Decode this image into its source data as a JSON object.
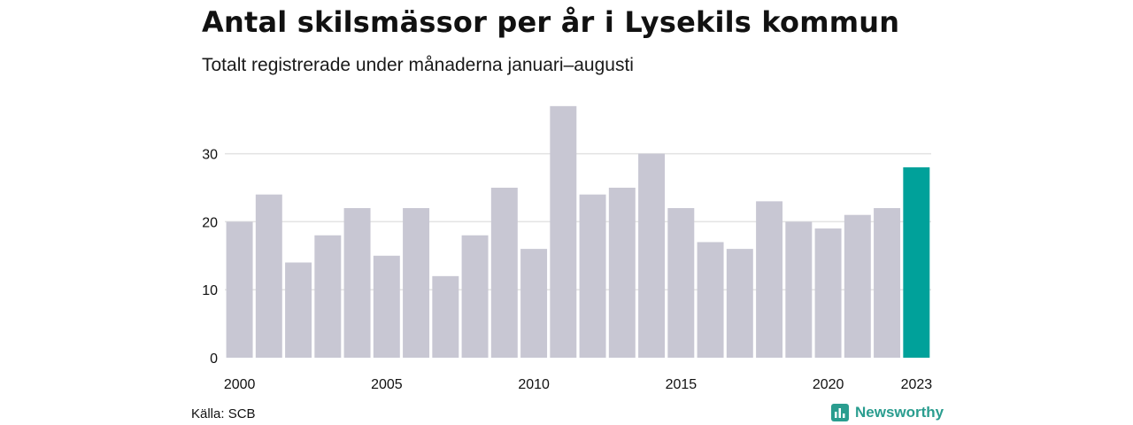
{
  "colors": {
    "bar": "#c8c7d3",
    "highlight": "#00a19a",
    "grid": "#e3e3e3",
    "brand": "#2a9d8f"
  },
  "chart_data": {
    "type": "bar",
    "title": "Antal skilsmässor per år i Lysekils kommun",
    "subtitle": "Totalt registrerade under månaderna januari–augusti",
    "categories": [
      "2000",
      "2001",
      "2002",
      "2003",
      "2004",
      "2005",
      "2006",
      "2007",
      "2008",
      "2009",
      "2010",
      "2011",
      "2012",
      "2013",
      "2014",
      "2015",
      "2016",
      "2017",
      "2018",
      "2019",
      "2020",
      "2021",
      "2022",
      "2023"
    ],
    "values": [
      20,
      24,
      14,
      18,
      22,
      15,
      22,
      12,
      18,
      25,
      16,
      37,
      24,
      25,
      30,
      22,
      17,
      16,
      23,
      20,
      19,
      21,
      22,
      28
    ],
    "highlight_category": "2023",
    "x_tick_labels": [
      "2000",
      "2005",
      "2010",
      "2015",
      "2020",
      "2023"
    ],
    "y_ticks": [
      0,
      10,
      20,
      30
    ],
    "ylim": [
      0,
      38
    ],
    "xlabel": "",
    "ylabel": "",
    "grid": true,
    "legend": false
  },
  "footer": {
    "source": "Källa: SCB",
    "brand_name": "Newsworthy",
    "brand_icon": "newsworthy-logo-icon"
  }
}
